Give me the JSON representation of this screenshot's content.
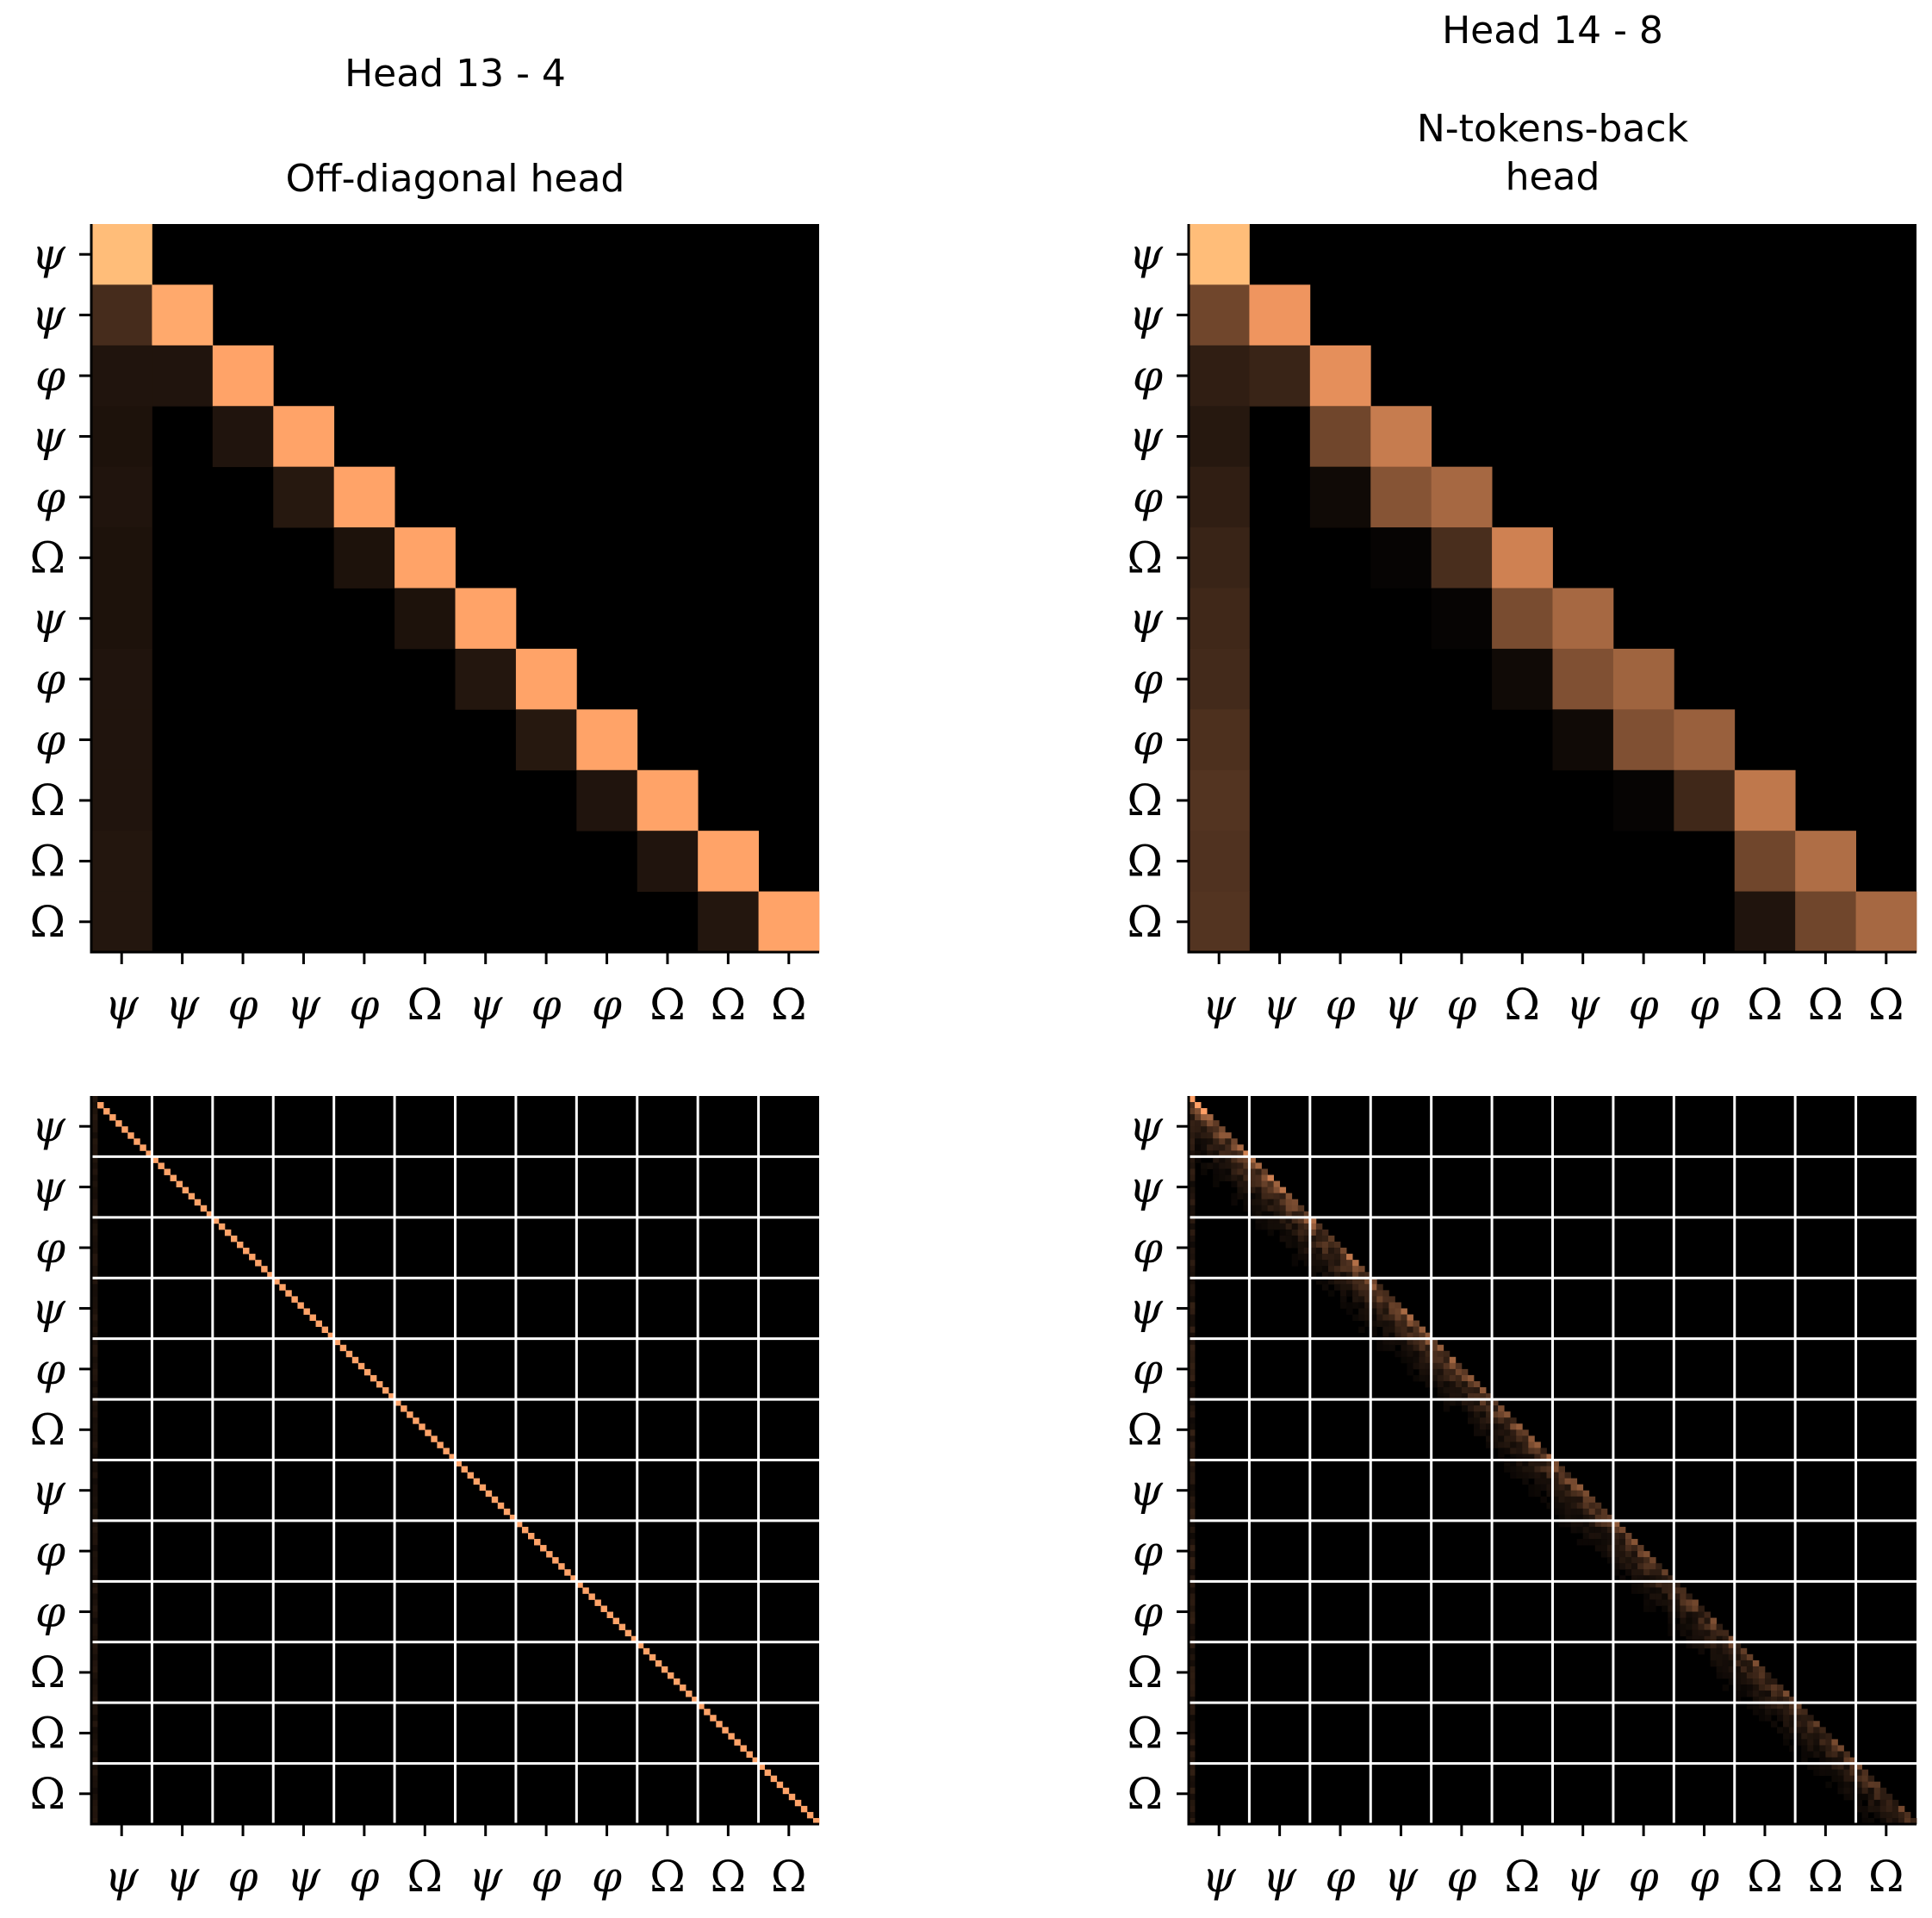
{
  "chart_data": [
    {
      "type": "heatmap",
      "title_lines": [
        "Head 13 - 4",
        "",
        "Off-diagonal head"
      ],
      "xticklabels": [
        "ψ",
        "ψ",
        "φ",
        "ψ",
        "φ",
        "Ω",
        "ψ",
        "φ",
        "φ",
        "Ω",
        "Ω",
        "Ω"
      ],
      "yticklabels": [
        "ψ",
        "ψ",
        "φ",
        "ψ",
        "φ",
        "Ω",
        "ψ",
        "φ",
        "φ",
        "Ω",
        "Ω",
        "Ω"
      ],
      "colormap": "copper",
      "grid": false,
      "matrix": [
        [
          0.95,
          0,
          0,
          0,
          0,
          0,
          0,
          0,
          0,
          0,
          0,
          0
        ],
        [
          0.22,
          0.85,
          0,
          0,
          0,
          0,
          0,
          0,
          0,
          0,
          0,
          0
        ],
        [
          0.1,
          0.1,
          0.82,
          0,
          0,
          0,
          0,
          0,
          0,
          0,
          0,
          0
        ],
        [
          0.09,
          0,
          0.1,
          0.82,
          0,
          0,
          0,
          0,
          0,
          0,
          0,
          0
        ],
        [
          0.1,
          0,
          0,
          0.12,
          0.82,
          0,
          0,
          0,
          0,
          0,
          0,
          0
        ],
        [
          0.09,
          0,
          0,
          0,
          0.09,
          0.82,
          0,
          0,
          0,
          0,
          0,
          0
        ],
        [
          0.09,
          0,
          0,
          0,
          0,
          0.09,
          0.82,
          0,
          0,
          0,
          0,
          0
        ],
        [
          0.1,
          0,
          0,
          0,
          0,
          0,
          0.11,
          0.82,
          0,
          0,
          0,
          0
        ],
        [
          0.1,
          0,
          0,
          0,
          0,
          0,
          0,
          0.12,
          0.82,
          0,
          0,
          0
        ],
        [
          0.1,
          0,
          0,
          0,
          0,
          0,
          0,
          0,
          0.1,
          0.82,
          0,
          0
        ],
        [
          0.11,
          0,
          0,
          0,
          0,
          0,
          0,
          0,
          0,
          0.1,
          0.82,
          0
        ],
        [
          0.11,
          0,
          0,
          0,
          0,
          0,
          0,
          0,
          0,
          0,
          0.11,
          0.82
        ]
      ]
    },
    {
      "type": "heatmap",
      "title_lines": [
        "Head 14 - 8",
        "",
        "N-tokens-back",
        "head"
      ],
      "xticklabels": [
        "ψ",
        "ψ",
        "φ",
        "ψ",
        "φ",
        "Ω",
        "ψ",
        "φ",
        "φ",
        "Ω",
        "Ω",
        "Ω"
      ],
      "yticklabels": [
        "ψ",
        "ψ",
        "φ",
        "ψ",
        "φ",
        "Ω",
        "ψ",
        "φ",
        "φ",
        "Ω",
        "Ω",
        "Ω"
      ],
      "colormap": "copper",
      "grid": false,
      "matrix": [
        [
          0.95,
          0,
          0,
          0,
          0,
          0,
          0,
          0,
          0,
          0,
          0,
          0
        ],
        [
          0.35,
          0.75,
          0,
          0,
          0,
          0,
          0,
          0,
          0,
          0,
          0,
          0
        ],
        [
          0.15,
          0.18,
          0.72,
          0,
          0,
          0,
          0,
          0,
          0,
          0,
          0,
          0
        ],
        [
          0.12,
          0,
          0.35,
          0.62,
          0,
          0,
          0,
          0,
          0,
          0,
          0,
          0
        ],
        [
          0.15,
          0,
          0.05,
          0.42,
          0.52,
          0,
          0,
          0,
          0,
          0,
          0,
          0
        ],
        [
          0.18,
          0,
          0,
          0.02,
          0.23,
          0.65,
          0,
          0,
          0,
          0,
          0,
          0
        ],
        [
          0.2,
          0,
          0,
          0,
          0.02,
          0.38,
          0.52,
          0,
          0,
          0,
          0,
          0
        ],
        [
          0.21,
          0,
          0,
          0,
          0,
          0.05,
          0.4,
          0.5,
          0,
          0,
          0,
          0
        ],
        [
          0.24,
          0,
          0,
          0,
          0,
          0,
          0.05,
          0.4,
          0.48,
          0,
          0,
          0
        ],
        [
          0.26,
          0,
          0,
          0,
          0,
          0,
          0,
          0.02,
          0.2,
          0.6,
          0,
          0
        ],
        [
          0.25,
          0,
          0,
          0,
          0,
          0,
          0,
          0,
          0,
          0.35,
          0.55,
          0
        ],
        [
          0.26,
          0,
          0,
          0,
          0,
          0,
          0,
          0,
          0,
          0.1,
          0.35,
          0.52
        ]
      ]
    },
    {
      "type": "heatmap",
      "title_lines": [],
      "xticklabels": [
        "ψ",
        "ψ",
        "φ",
        "ψ",
        "φ",
        "Ω",
        "ψ",
        "φ",
        "φ",
        "Ω",
        "Ω",
        "Ω"
      ],
      "yticklabels": [
        "ψ",
        "ψ",
        "φ",
        "ψ",
        "φ",
        "Ω",
        "ψ",
        "φ",
        "φ",
        "Ω",
        "Ω",
        "Ω"
      ],
      "colormap": "copper",
      "grid": true,
      "block_size": 10,
      "pattern": "sharp-diagonal"
    },
    {
      "type": "heatmap",
      "title_lines": [],
      "xticklabels": [
        "ψ",
        "ψ",
        "φ",
        "ψ",
        "φ",
        "Ω",
        "ψ",
        "φ",
        "φ",
        "Ω",
        "Ω",
        "Ω"
      ],
      "yticklabels": [
        "ψ",
        "ψ",
        "φ",
        "ψ",
        "φ",
        "Ω",
        "ψ",
        "φ",
        "φ",
        "Ω",
        "Ω",
        "Ω"
      ],
      "colormap": "copper",
      "grid": true,
      "block_size": 10,
      "pattern": "diffuse-near-diagonal"
    }
  ]
}
